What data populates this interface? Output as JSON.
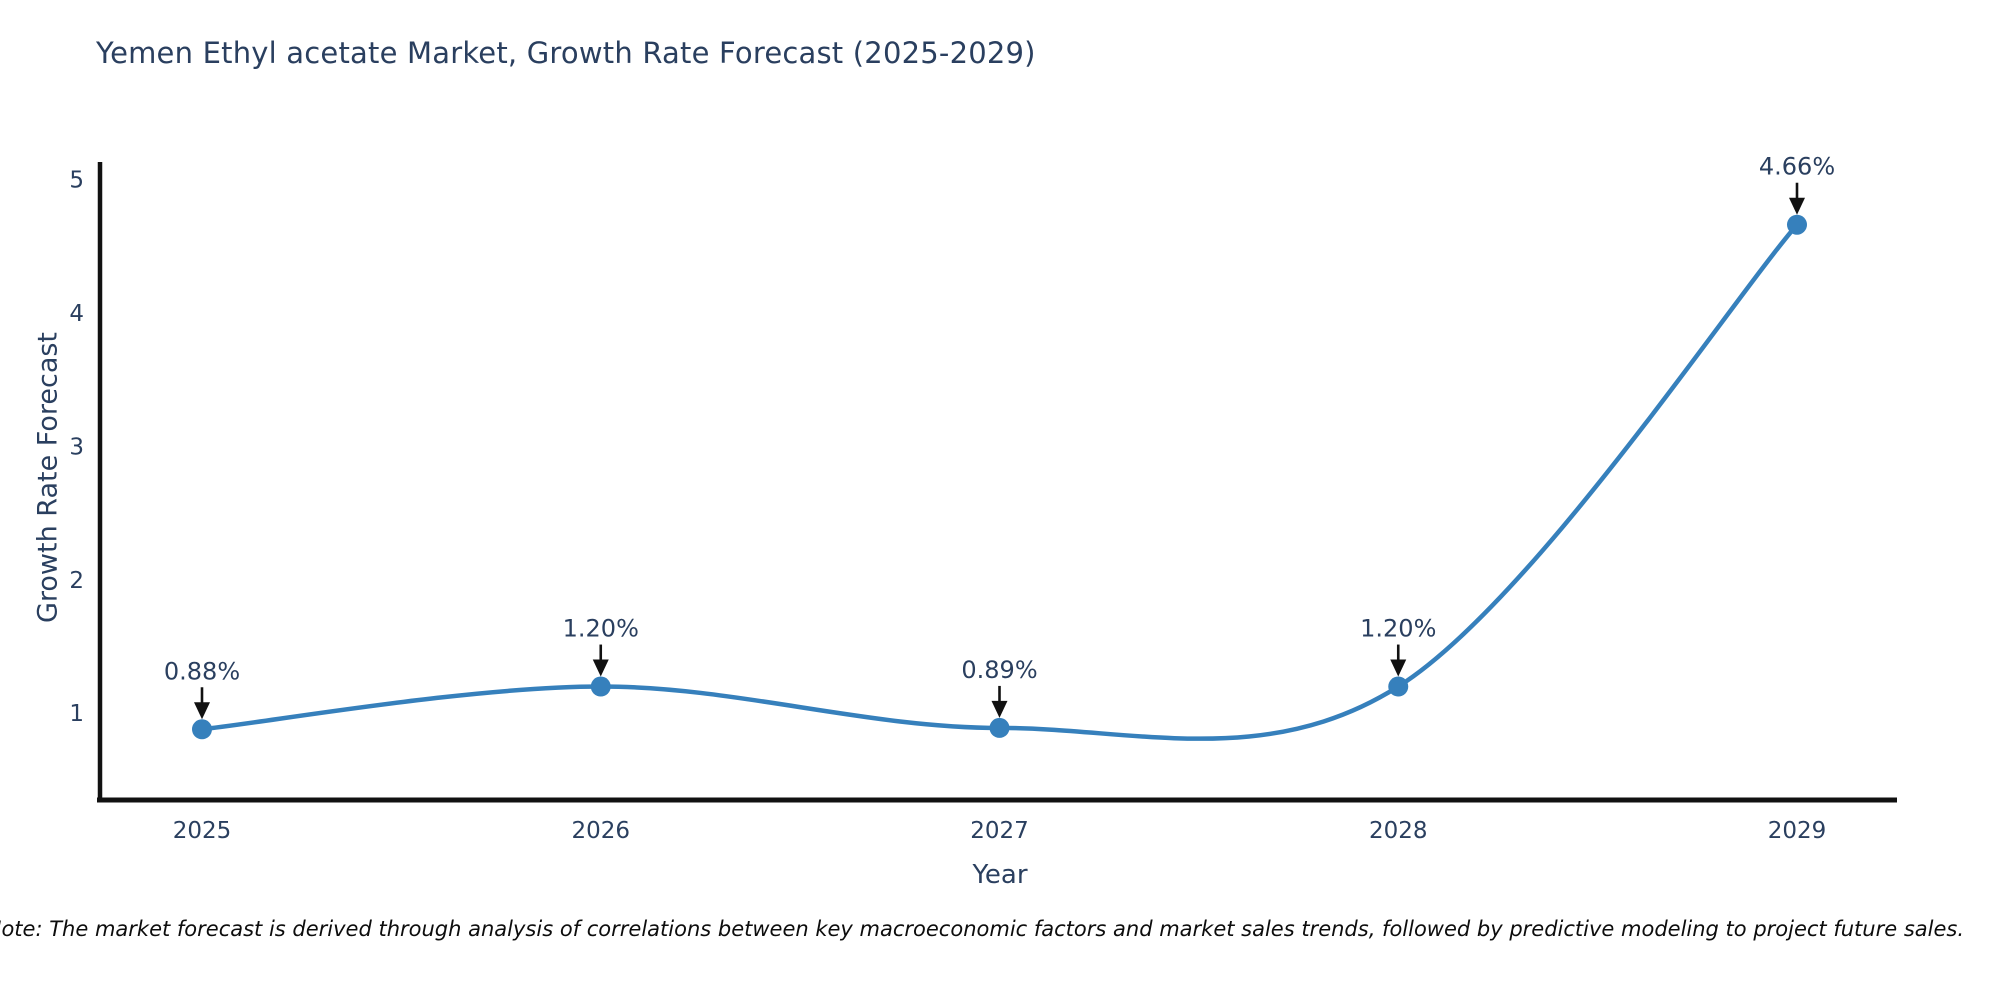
{
  "chart_data": {
    "type": "line",
    "line_shape": "spline",
    "title": "Yemen Ethyl acetate Market, Growth Rate Forecast (2025-2029)",
    "xlabel": "Year",
    "ylabel": "Growth Rate Forecast",
    "categories": [
      "2025",
      "2026",
      "2027",
      "2028",
      "2029"
    ],
    "series": [
      {
        "name": "Growth Rate Forecast",
        "values": [
          0.88,
          1.2,
          0.89,
          1.2,
          4.66
        ],
        "point_labels": [
          "0.88%",
          "1.20%",
          "0.89%",
          "1.20%",
          "4.66%"
        ]
      }
    ],
    "yticks": [
      1,
      2,
      3,
      4,
      5
    ],
    "ylim": [
      0.35,
      5.13
    ],
    "grid": false,
    "legend_position": "none",
    "colors": {
      "line": "#3680bc",
      "marker": "#3680bc",
      "axis": "#111111",
      "text": "#2a3f5f",
      "annotation_arrow": "#111111",
      "background": "#ffffff"
    }
  },
  "note": {
    "text": "Note: The market forecast is derived through analysis of correlations between key macroeconomic factors and market sales trends, followed by predictive modeling to project future sales."
  }
}
